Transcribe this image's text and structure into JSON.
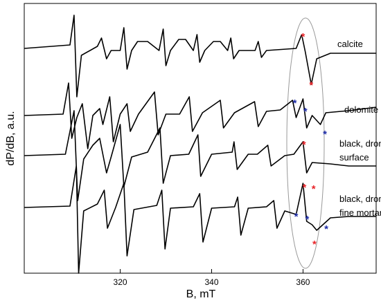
{
  "chart_data": {
    "type": "line",
    "x_label": "B, mT",
    "y_label": "dP/dB, a.u.",
    "xlim": [
      299,
      376
    ],
    "ylim": [
      0,
      390
    ],
    "xticks": [
      320,
      340,
      360
    ],
    "series": [
      {
        "label": [
          "calcite"
        ],
        "color": "#000000",
        "x": [
          299,
          309,
          309.9,
          310.5,
          311.5,
          315,
          315.9,
          317,
          318,
          320,
          320.8,
          321.5,
          322.5,
          323.8,
          326,
          328.5,
          329.4,
          330,
          331,
          332.8,
          334.3,
          336,
          336.8,
          337.4,
          338.5,
          340.4,
          341.9,
          343.5,
          344.2,
          344.8,
          346,
          349.5,
          350.2,
          350.9,
          352,
          358.5,
          359.7,
          360.5,
          361.8,
          363,
          366,
          376
        ],
        "values": [
          325,
          330,
          373,
          255,
          315,
          328,
          340,
          310,
          322,
          322,
          355,
          295,
          322,
          335,
          335,
          322,
          353,
          300,
          322,
          338,
          338,
          322,
          345,
          305,
          322,
          335,
          335,
          322,
          340,
          310,
          322,
          322,
          335,
          312,
          322,
          325,
          345,
          320,
          273,
          310,
          318,
          318
        ]
      },
      {
        "label": [
          "dolomite"
        ],
        "color": "#000000",
        "x": [
          299,
          307.5,
          308.7,
          309.4,
          310.5,
          311.7,
          312.9,
          314,
          315.5,
          316.2,
          317.7,
          318.5,
          320,
          321.5,
          322.2,
          324,
          327.5,
          328.3,
          330,
          333,
          335.1,
          335.8,
          338,
          341.9,
          342.6,
          345,
          349.4,
          350.2,
          352,
          355,
          357.7,
          358.5,
          360,
          360.8,
          362,
          363.8,
          365,
          370,
          376
        ],
        "values": [
          228,
          230,
          275,
          195,
          225,
          245,
          180,
          228,
          238,
          215,
          255,
          190,
          230,
          245,
          205,
          230,
          262,
          200,
          230,
          230,
          255,
          205,
          232,
          250,
          210,
          232,
          248,
          212,
          234,
          236,
          250,
          225,
          252,
          210,
          228,
          215,
          232,
          235,
          240
        ]
      },
      {
        "label": [
          "black, dromos",
          "surface"
        ],
        "color": "#000000",
        "x": [
          299,
          308,
          309.9,
          310.7,
          312,
          314,
          315.5,
          317,
          318,
          320,
          320.8,
          322.5,
          326,
          328.7,
          329.4,
          331,
          335,
          337,
          337.6,
          340,
          344.5,
          344.9,
          345.6,
          348,
          350,
          352.3,
          353,
          356,
          358,
          360,
          360.8,
          362,
          366,
          370,
          376
        ],
        "values": [
          170,
          172,
          235,
          105,
          165,
          185,
          195,
          145,
          168,
          215,
          125,
          168,
          175,
          210,
          130,
          170,
          172,
          200,
          140,
          172,
          175,
          190,
          150,
          172,
          172,
          185,
          155,
          170,
          172,
          190,
          145,
          160,
          158,
          155,
          155
        ]
      },
      {
        "label": [
          "black, dromos",
          "fine mortar"
        ],
        "color": "#000000",
        "x": [
          299,
          309,
          310.4,
          310.9,
          312,
          315,
          316.5,
          317.2,
          319,
          320.8,
          321.5,
          323,
          328,
          329.1,
          329.8,
          331,
          336,
          337.4,
          338.1,
          340,
          345,
          345.7,
          346.4,
          348,
          352,
          353.6,
          354.3,
          356,
          358.5,
          360,
          360.8,
          362,
          363,
          366,
          370,
          376
        ],
        "values": [
          95,
          97,
          155,
          0,
          90,
          100,
          120,
          65,
          95,
          130,
          25,
          92,
          98,
          120,
          35,
          94,
          96,
          115,
          45,
          94,
          96,
          110,
          55,
          94,
          96,
          105,
          65,
          90,
          85,
          130,
          75,
          70,
          62,
          80,
          82,
          82
        ]
      }
    ],
    "markers": [
      {
        "x": 360,
        "y": 343,
        "color": "#e8262b",
        "label": "*"
      },
      {
        "x": 361.8,
        "y": 273,
        "color": "#e8262b",
        "label": "*"
      },
      {
        "x": 358.2,
        "y": 247,
        "color": "#1f2ea8",
        "label": "*"
      },
      {
        "x": 360.5,
        "y": 235,
        "color": "#1f2ea8",
        "label": "*"
      },
      {
        "x": 364.8,
        "y": 202,
        "color": "#1f2ea8",
        "label": "*"
      },
      {
        "x": 360.2,
        "y": 187,
        "color": "#e8262b",
        "label": "*"
      },
      {
        "x": 360.3,
        "y": 125,
        "color": "#e8262b",
        "label": "*"
      },
      {
        "x": 362.3,
        "y": 123,
        "color": "#e8262b",
        "label": "*"
      },
      {
        "x": 362.5,
        "y": 43,
        "color": "#e8262b",
        "label": "*"
      },
      {
        "x": 358.5,
        "y": 83,
        "color": "#1f2ea8",
        "label": "*"
      },
      {
        "x": 360.9,
        "y": 79,
        "color": "#1f2ea8",
        "label": "*"
      },
      {
        "x": 365.1,
        "y": 65,
        "color": "#1f2ea8",
        "label": "*"
      }
    ]
  }
}
